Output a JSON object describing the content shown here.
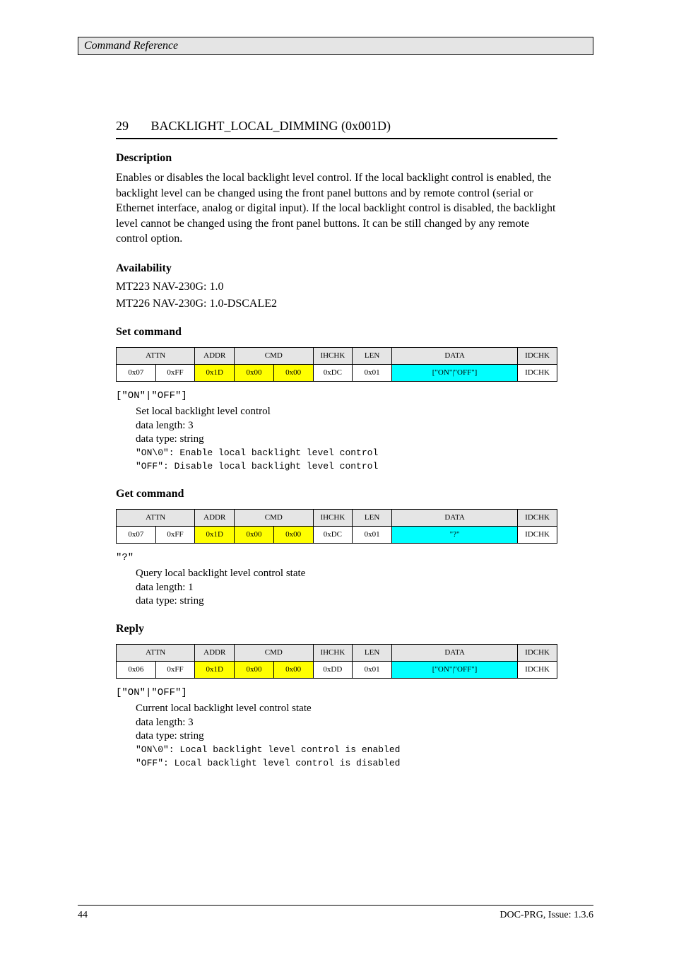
{
  "header": {
    "title": "Command Reference"
  },
  "section": {
    "number": "29",
    "title": "BACKLIGHT_LOCAL_DIMMING (0x001D)"
  },
  "description": {
    "label": "Description",
    "text": "Enables or disables the local backlight level control. If the local backlight control is enabled, the backlight level can be changed using the front panel buttons and by remote control (serial or Ethernet interface, analog or digital input). If the local backlight control is disabled, the backlight level cannot be changed using the front panel buttons. It can be still changed by any remote control option."
  },
  "availability": {
    "label": "Availability",
    "line1": "MT223 NAV-230G: 1.0",
    "line2": "MT226 NAV-230G: 1.0-DSCALE2"
  },
  "tables": {
    "headers": [
      "ATTN",
      "ADDR",
      "CMD",
      "IHCHK",
      "LEN",
      "DATA",
      "IDCHK"
    ],
    "colors": {
      "yellow": "#ffff00",
      "cyan": "#00ffff",
      "header_bg": "#e5e5e5"
    },
    "set": {
      "label": "Set command",
      "row": [
        "0x07",
        "0xFF",
        "0x1D",
        "0x00",
        "0x00",
        "0xDC",
        "0x01",
        "[\"ON\"|\"OFF\"]",
        "IDCHK"
      ],
      "param": {
        "name": "[\"ON\"|\"OFF\"]",
        "desc": "Set local backlight level control",
        "len": "3",
        "type": "string",
        "line_on": "\"ON\\0\": Enable local backlight level control",
        "line_off": "\"OFF\": Disable local backlight level control"
      }
    },
    "get": {
      "label": "Get command",
      "row": [
        "0x07",
        "0xFF",
        "0x1D",
        "0x00",
        "0x00",
        "0xDC",
        "0x01",
        "\"?\"",
        "IDCHK"
      ],
      "param": {
        "name": "\"?\"",
        "desc": "Query local backlight level control state",
        "len": "1",
        "type": "string"
      }
    },
    "reply": {
      "label": "Reply",
      "row": [
        "0x06",
        "0xFF",
        "0x1D",
        "0x00",
        "0x00",
        "0xDD",
        "0x01",
        "[\"ON\"|\"OFF\"]",
        "IDCHK"
      ],
      "param": {
        "name": "[\"ON\"|\"OFF\"]",
        "desc": "Current local backlight level control state",
        "len": "3",
        "type": "string",
        "line_on": "\"ON\\0\": Local backlight level control is enabled",
        "line_off": "\"OFF\": Local backlight level control is disabled"
      }
    }
  },
  "footer": {
    "page": "44",
    "doc": "DOC-PRG, Issue: 1.3.6"
  }
}
